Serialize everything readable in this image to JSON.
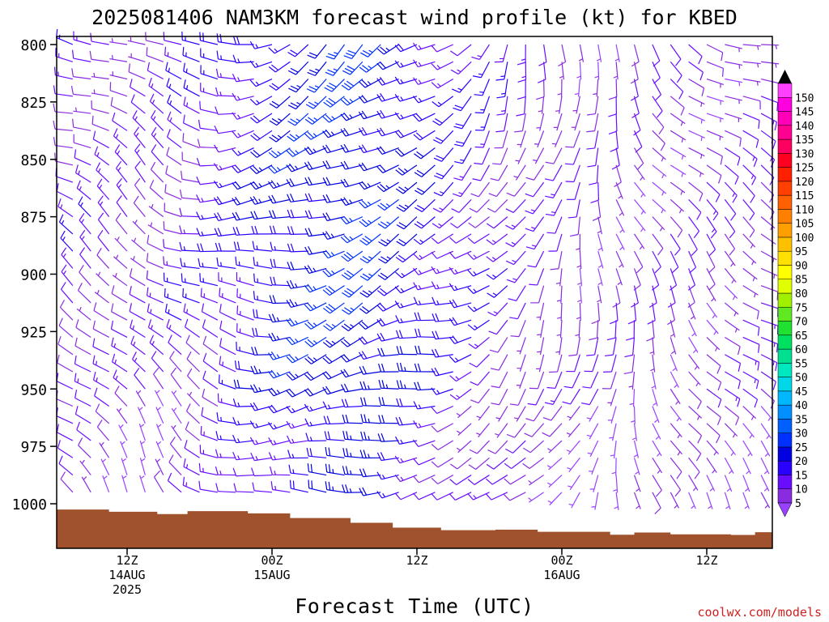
{
  "chart_data": {
    "type": "wind_barbs",
    "title": "2025081406 NAM3KM forecast wind profile (kt) for KBED",
    "xlabel": "Forecast Time (UTC)",
    "credit": "coolwx.com/models",
    "y_axis": {
      "quantity": "pressure",
      "units": "hPa",
      "range": [
        800,
        1020
      ],
      "inverted": true,
      "ticks": [
        "800",
        "825",
        "850",
        "875",
        "900",
        "925",
        "950",
        "975",
        "1000"
      ]
    },
    "x_axis": {
      "range_hours": [
        0,
        60
      ],
      "ticks": [
        {
          "hour": 6,
          "lines": [
            "12Z",
            "14AUG",
            "2025"
          ]
        },
        {
          "hour": 18,
          "lines": [
            "00Z",
            "15AUG"
          ]
        },
        {
          "hour": 30,
          "lines": [
            "12Z"
          ]
        },
        {
          "hour": 42,
          "lines": [
            "00Z",
            "16AUG"
          ]
        },
        {
          "hour": 54,
          "lines": [
            "12Z"
          ]
        }
      ]
    },
    "colorbar": {
      "levels": [
        "5",
        "10",
        "15",
        "20",
        "25",
        "30",
        "35",
        "40",
        "45",
        "50",
        "55",
        "60",
        "65",
        "70",
        "75",
        "80",
        "85",
        "90",
        "95",
        "100",
        "105",
        "110",
        "115",
        "120",
        "125",
        "130",
        "135",
        "140",
        "145",
        "150"
      ],
      "colors": [
        "#8a2be2",
        "#6a0dff",
        "#2a00ff",
        "#0000e0",
        "#0030ff",
        "#0060ff",
        "#0090ff",
        "#00b8ff",
        "#00d8e8",
        "#00e8c0",
        "#00e090",
        "#00e060",
        "#20e030",
        "#60e820",
        "#a0f000",
        "#e0ff00",
        "#ffff00",
        "#ffe000",
        "#ffc000",
        "#ffa000",
        "#ff8000",
        "#ff6000",
        "#ff4000",
        "#ff2000",
        "#ff0020",
        "#ff0060",
        "#ff0090",
        "#ff00b8",
        "#ff00e0",
        "#ff40ff"
      ],
      "under_color": "#9a40ff",
      "over_color": "#000000"
    },
    "terrain": {
      "color": "#a0522d",
      "surface_pressure_by_hour": [
        [
          0,
          1002.5
        ],
        [
          4.5,
          1003.5
        ],
        [
          8.5,
          1004.5
        ],
        [
          11,
          1003.2
        ],
        [
          16,
          1004.2
        ],
        [
          19.5,
          1006.2
        ],
        [
          24.5,
          1008.3
        ],
        [
          28,
          1010.4
        ],
        [
          32,
          1011.5
        ],
        [
          36.5,
          1011.3
        ],
        [
          40,
          1012.2
        ],
        [
          46,
          1013.5
        ],
        [
          48,
          1012.5
        ],
        [
          51,
          1013.3
        ],
        [
          56,
          1013.6
        ],
        [
          58,
          1012.4
        ],
        [
          60,
          1010.8
        ]
      ]
    },
    "wind_pressure_levels": [
      800,
      807.5,
      815,
      822.5,
      830,
      837.5,
      845,
      852.5,
      860,
      867.5,
      875,
      882.5,
      890,
      897.5,
      905,
      912.5,
      920,
      927.5,
      935,
      942.5,
      950,
      957.5,
      965,
      972.5,
      980,
      987.5,
      995
    ],
    "wind_hours": [
      0,
      1.5,
      3,
      4.5,
      6,
      7.5,
      9,
      10.5,
      12,
      13.5,
      15,
      16.5,
      18,
      19.5,
      21,
      22.5,
      24,
      25.5,
      27,
      28.5,
      30,
      31.5,
      33,
      34.5,
      36,
      37.5,
      39,
      40.5,
      42,
      43.5,
      45,
      46.5,
      48,
      49.5,
      51,
      52.5,
      54,
      55.5,
      57,
      58.5,
      60
    ],
    "wind_field_keypoints": [
      {
        "hour": 0,
        "dir_deg": 300,
        "speed_kt": 12
      },
      {
        "hour": 8,
        "dir_deg": 315,
        "speed_kt": 10
      },
      {
        "hour": 14,
        "dir_deg": 280,
        "speed_kt": 14
      },
      {
        "hour": 20,
        "dir_deg": 255,
        "speed_kt": 22
      },
      {
        "hour": 26,
        "dir_deg": 245,
        "speed_kt": 25
      },
      {
        "hour": 32,
        "dir_deg": 250,
        "speed_kt": 17
      },
      {
        "hour": 38,
        "dir_deg": 215,
        "speed_kt": 11
      },
      {
        "hour": 44,
        "dir_deg": 190,
        "speed_kt": 8
      },
      {
        "hour": 50,
        "dir_deg": 150,
        "speed_kt": 8
      },
      {
        "hour": 56,
        "dir_deg": 130,
        "speed_kt": 9
      },
      {
        "hour": 60,
        "dir_deg": 120,
        "speed_kt": 10
      }
    ]
  }
}
